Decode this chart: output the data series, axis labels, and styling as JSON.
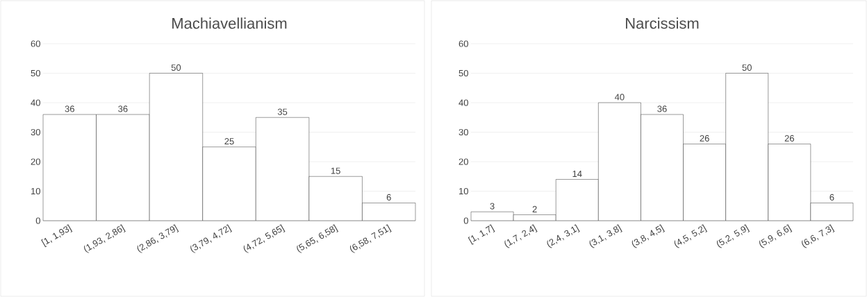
{
  "chart_data": [
    {
      "type": "bar",
      "title": "Machiavellianism",
      "categories": [
        "[1, 1,93]",
        "(1,93, 2,86]",
        "(2,86, 3,79]",
        "(3,79, 4,72]",
        "(4,72, 5,65]",
        "(5,65, 6,58]",
        "(6,58, 7,51]"
      ],
      "values": [
        36,
        36,
        50,
        25,
        35,
        15,
        6
      ],
      "color": "#ffffff",
      "ylim": [
        0,
        60
      ],
      "yticks": [
        0,
        10,
        20,
        30,
        40,
        50,
        60
      ],
      "grid": "y",
      "data_labels": true
    },
    {
      "type": "bar",
      "title": "Narcissism",
      "categories": [
        "[1, 1,7]",
        "(1,7, 2,4]",
        "(2,4, 3,1]",
        "(3,1, 3,8]",
        "(3,8, 4,5]",
        "(4,5, 5,2]",
        "(5,2, 5,9]",
        "(5,9, 6,6]",
        "(6,6, 7,3]"
      ],
      "values": [
        3,
        2,
        14,
        40,
        36,
        26,
        50,
        26,
        6
      ],
      "color": "#ffffff",
      "ylim": [
        0,
        60
      ],
      "yticks": [
        0,
        10,
        20,
        30,
        40,
        50,
        60
      ],
      "grid": "y",
      "data_labels": true
    }
  ]
}
